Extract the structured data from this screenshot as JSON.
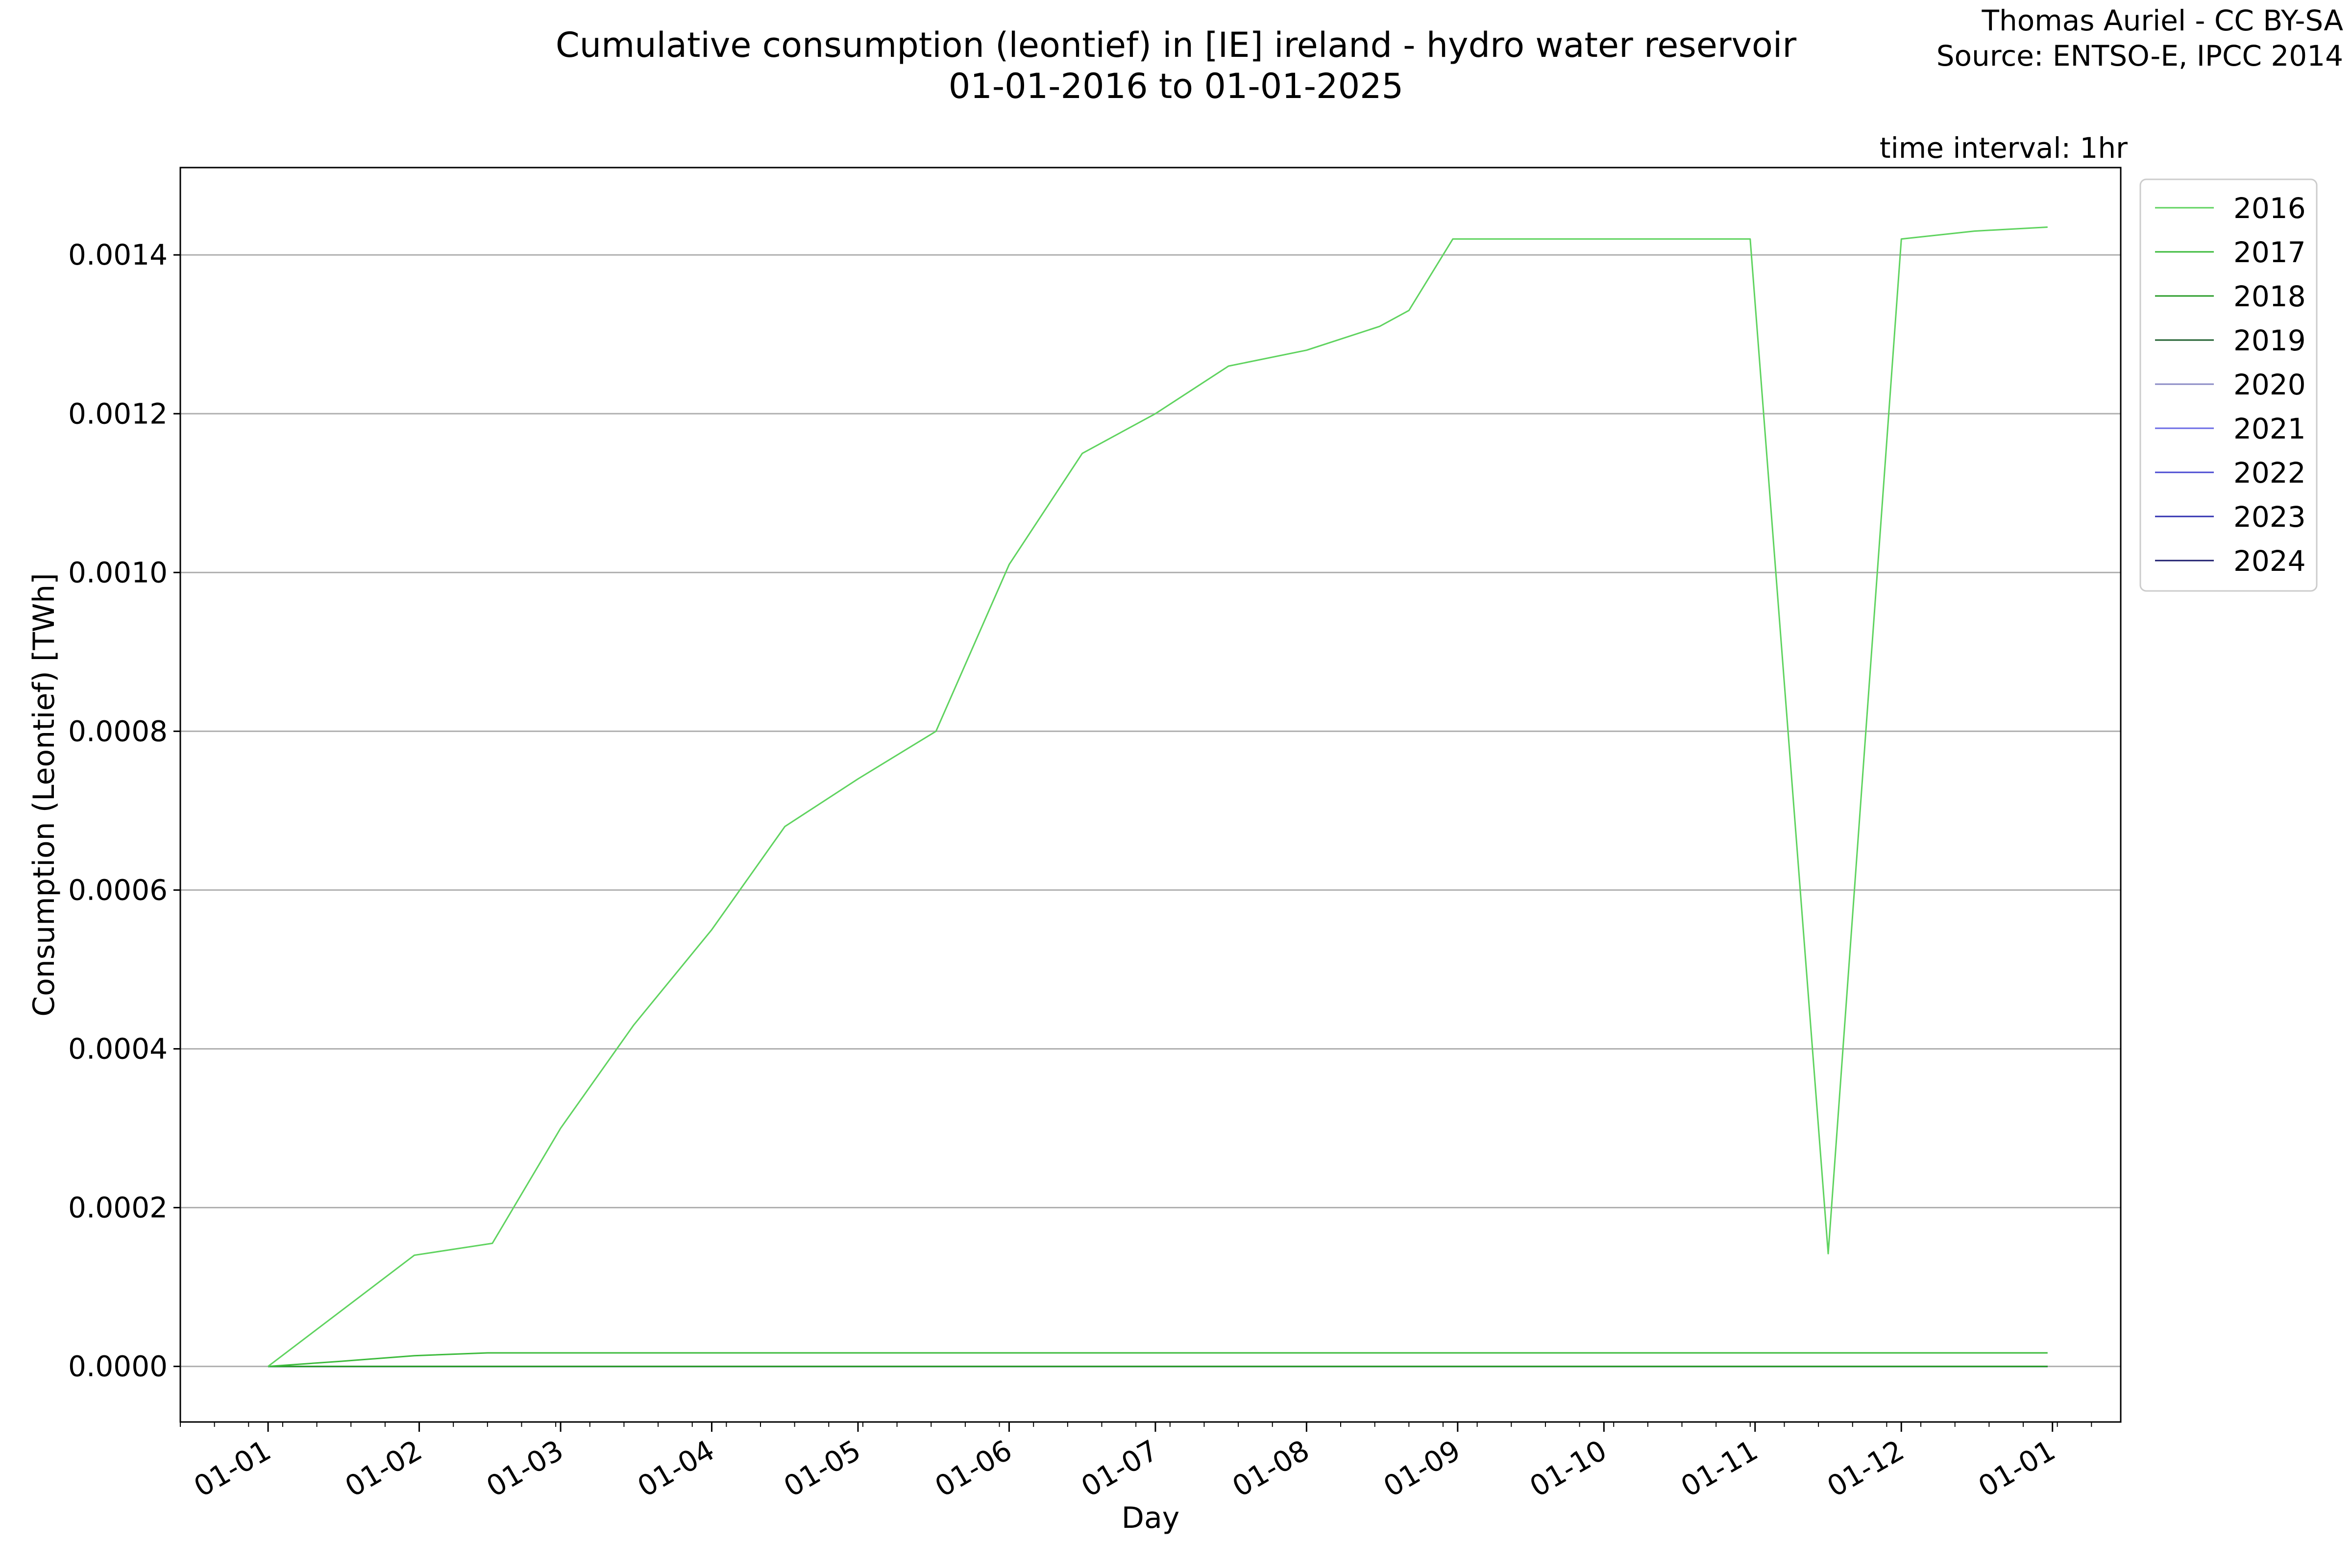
{
  "header": {
    "title_line1": "Cumulative consumption (leontief) in [IE] ireland - hydro water reservoir",
    "title_line2": "01-01-2016 to 01-01-2025",
    "credit_line1": "Thomas Auriel - CC BY-SA",
    "credit_line2": "Source: ENTSO-E, IPCC 2014",
    "interval": "time interval: 1hr"
  },
  "chart_data": {
    "type": "line",
    "title": "Cumulative consumption (leontief) in [IE] ireland - hydro water reservoir",
    "subtitle": "01-01-2016 to 01-01-2025",
    "xlabel": "Day",
    "ylabel": "Consumption (Leontief) [TWh]",
    "x_ticks": [
      "01-01",
      "01-02",
      "01-03",
      "01-04",
      "01-05",
      "01-06",
      "01-07",
      "01-08",
      "01-09",
      "01-10",
      "01-11",
      "01-12",
      "01-01"
    ],
    "y_ticks": [
      "0.0000",
      "0.0002",
      "0.0004",
      "0.0006",
      "0.0008",
      "0.0010",
      "0.0012",
      "0.0014"
    ],
    "x_range_days": [
      -18,
      380
    ],
    "ylim": [
      -7e-05,
      0.00151
    ],
    "grid": "horizontal",
    "legend_position": "outside top-right",
    "series": [
      {
        "name": "2016",
        "color": "#5fd35f",
        "x_days": [
          0,
          15,
          30,
          46,
          60,
          75,
          91,
          106,
          121,
          137,
          152,
          167,
          182,
          197,
          213,
          228,
          234,
          243,
          259,
          274,
          289,
          304,
          320,
          335,
          350,
          365
        ],
        "values": [
          0.0,
          7e-05,
          0.00014,
          0.000155,
          0.0003,
          0.00043,
          0.00055,
          0.00068,
          0.00074,
          0.0008,
          0.00101,
          0.00115,
          0.0012,
          0.00126,
          0.00128,
          0.00131,
          0.00133,
          0.00142,
          0.00142,
          0.00142,
          0.00142,
          0.00142,
          0.000142,
          0.00142,
          0.00143,
          0.001435
        ]
      },
      {
        "name": "2017",
        "color": "#3dbb3d",
        "x_days": [
          0,
          15,
          30,
          45,
          60,
          365
        ],
        "values": [
          0.0,
          6.5e-06,
          1.35e-05,
          1.7e-05,
          1.7e-05,
          1.7e-05
        ]
      },
      {
        "name": "2018",
        "color": "#2a9c2a",
        "x_days": [
          0,
          365
        ],
        "values": [
          0.0,
          0.0
        ]
      },
      {
        "name": "2019",
        "color": "#1f5f2f",
        "x_days": [
          0,
          365
        ],
        "values": [
          0.0,
          0.0
        ]
      },
      {
        "name": "2020",
        "color": "#8a8ac4",
        "x_days": [
          0,
          365
        ],
        "values": [
          0.0,
          0.0
        ]
      },
      {
        "name": "2021",
        "color": "#6a6ae6",
        "x_days": [
          0,
          365
        ],
        "values": [
          0.0,
          0.0
        ]
      },
      {
        "name": "2022",
        "color": "#4a4ad2",
        "x_days": [
          0,
          365
        ],
        "values": [
          0.0,
          0.0
        ]
      },
      {
        "name": "2023",
        "color": "#3030b0",
        "x_days": [
          0,
          365
        ],
        "values": [
          0.0,
          0.0
        ]
      },
      {
        "name": "2024",
        "color": "#1c1c6e",
        "x_days": [
          0,
          365
        ],
        "values": [
          0.0,
          0.0
        ]
      }
    ]
  }
}
